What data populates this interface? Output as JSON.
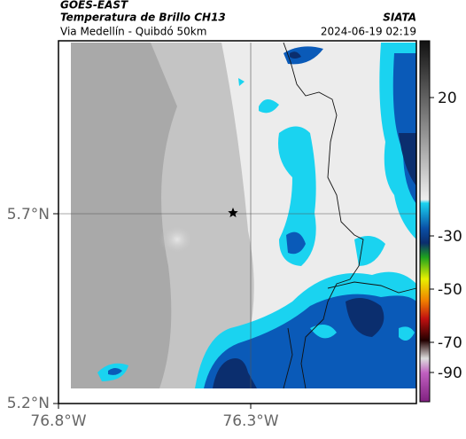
{
  "header": {
    "satellite": "GOES-EAST",
    "product": "Temperatura de Brillo CH13",
    "source": "SIATA",
    "region": "Via Medellín - Quibdó 50km",
    "timestamp": "2024-06-19 02:19"
  },
  "map": {
    "lat_labels": [
      "5.7°N",
      "5.2°N"
    ],
    "lon_labels": [
      "76.8°W",
      "76.3°W"
    ]
  },
  "colorbar": {
    "ticks": [
      20,
      -30,
      -50,
      -70,
      -90
    ]
  }
}
